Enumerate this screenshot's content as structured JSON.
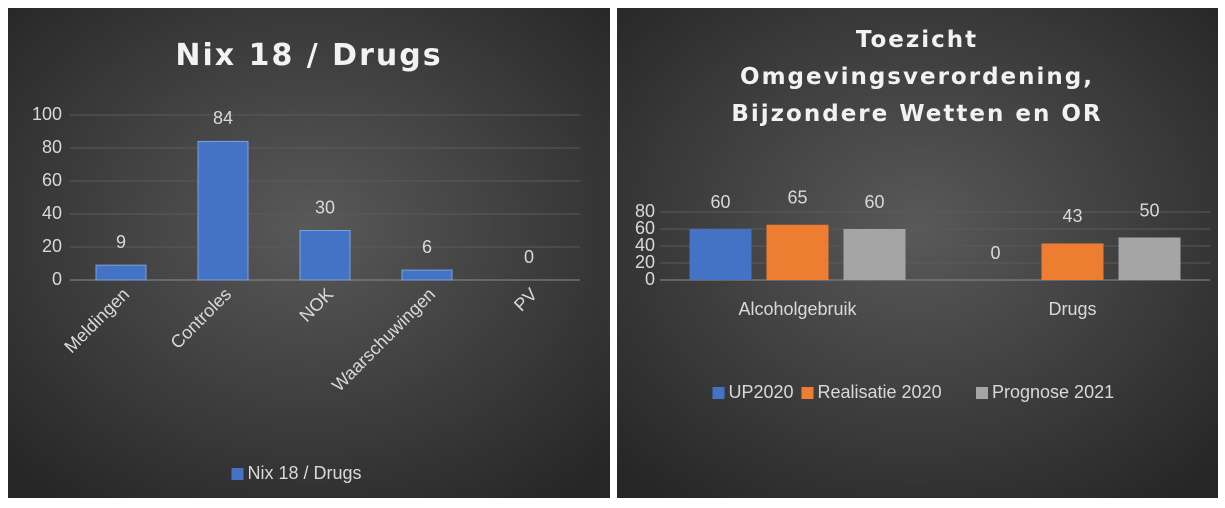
{
  "chart_data": [
    {
      "type": "bar",
      "title": "Nix 18 / Drugs",
      "categories": [
        "Meldingen",
        "Controles",
        "NOK",
        "Waarschuwingen",
        "PV"
      ],
      "series": [
        {
          "name": "Nix 18 / Drugs",
          "color": "#4472c4",
          "values": [
            9,
            84,
            30,
            6,
            0
          ]
        }
      ],
      "ylim": [
        0,
        100
      ],
      "yticks": [
        0,
        20,
        40,
        60,
        80,
        100
      ],
      "grid": true,
      "legend": "bottom"
    },
    {
      "type": "bar",
      "title": "Toezicht Omgevingsverordening, Bijzondere Wetten en OR",
      "categories": [
        "Alcoholgebruik",
        "Drugs"
      ],
      "series": [
        {
          "name": "UP2020",
          "color": "#4472c4",
          "values": [
            60,
            0
          ]
        },
        {
          "name": "Realisatie 2020",
          "color": "#ed7d31",
          "values": [
            65,
            43
          ]
        },
        {
          "name": "Prognose 2021",
          "color": "#a5a5a5",
          "values": [
            60,
            50
          ]
        }
      ],
      "ylim": [
        0,
        80
      ],
      "yticks": [
        0,
        20,
        40,
        60,
        80
      ],
      "grid": true,
      "legend": "bottom"
    }
  ]
}
